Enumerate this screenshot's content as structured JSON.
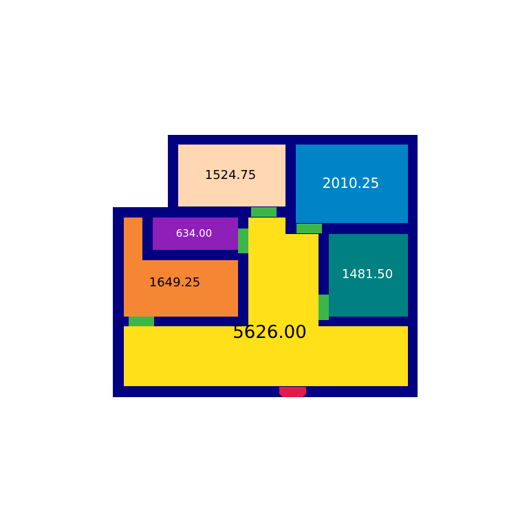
{
  "colors": {
    "wall": "#000080",
    "living": "#FFE019",
    "bedroom_top": "#FFD8B3",
    "bedroom_right_top": "#0083C7",
    "bedroom_right": "#008080",
    "bath": "#8E1FB9",
    "kitchen": "#F58634",
    "door": "#3CB64A",
    "entrance": "#E6194B"
  },
  "rooms": [
    {
      "id": "living",
      "area": "5626.00",
      "label_color": "#000000"
    },
    {
      "id": "bedroom-top",
      "area": "1524.75",
      "label_color": "#000000"
    },
    {
      "id": "bedroom-right-top",
      "area": "2010.25",
      "label_color": "#ffffff"
    },
    {
      "id": "bedroom-right",
      "area": "1481.50",
      "label_color": "#ffffff"
    },
    {
      "id": "bath",
      "area": "634.00",
      "label_color": "#ffffff"
    },
    {
      "id": "kitchen",
      "area": "1649.25",
      "label_color": "#000000"
    }
  ]
}
